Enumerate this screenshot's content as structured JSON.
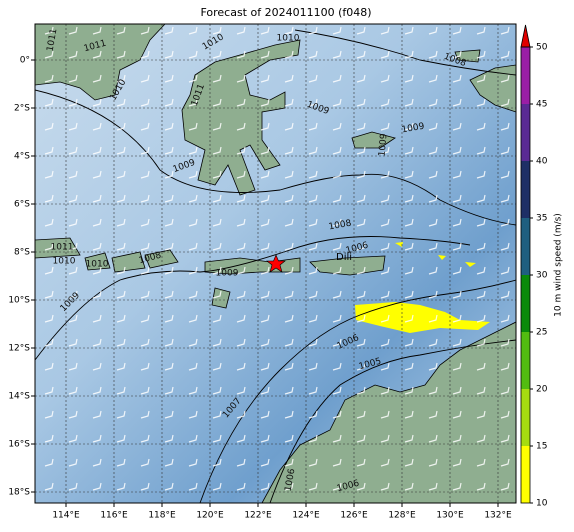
{
  "title": "Forecast of 2024011100 (f048)",
  "lon_ticks": [
    {
      "value": 114,
      "label": "114°E"
    },
    {
      "value": 116,
      "label": "116°E"
    },
    {
      "value": 118,
      "label": "118°E"
    },
    {
      "value": 120,
      "label": "120°E"
    },
    {
      "value": 122,
      "label": "122°E"
    },
    {
      "value": 124,
      "label": "124°E"
    },
    {
      "value": 126,
      "label": "126°E"
    },
    {
      "value": 128,
      "label": "128°E"
    },
    {
      "value": 130,
      "label": "130°E"
    },
    {
      "value": 132,
      "label": "132°E"
    }
  ],
  "lat_ticks": [
    {
      "value": 0,
      "label": "0°"
    },
    {
      "value": -2,
      "label": "2°S"
    },
    {
      "value": -4,
      "label": "4°S"
    },
    {
      "value": -6,
      "label": "6°S"
    },
    {
      "value": -8,
      "label": "8°S"
    },
    {
      "value": -10,
      "label": "10°S"
    },
    {
      "value": -12,
      "label": "12°S"
    },
    {
      "value": -14,
      "label": "14°S"
    },
    {
      "value": -16,
      "label": "16°S"
    },
    {
      "value": -18,
      "label": "18°S"
    }
  ],
  "colorbar": {
    "label": "10 m wind speed (m/s)",
    "lim": [
      10,
      50
    ],
    "ticks": [
      10,
      15,
      20,
      25,
      30,
      35,
      40,
      45,
      50
    ],
    "colors": [
      "#ffff00",
      "#a6dc10",
      "#52bc10",
      "#0a8a0a",
      "#1f5f80",
      "#1e2f66",
      "#5a2a94",
      "#9a1ea6"
    ],
    "extend_color": "#e00000"
  },
  "place_label": "Dili",
  "isobar_labels": [
    "1011",
    "1011",
    "1010",
    "1011",
    "1010",
    "1010",
    "1008",
    "1009",
    "1009",
    "1009",
    "1009",
    "1008",
    "1006",
    "1011",
    "1010",
    "1010",
    "1008",
    "1009",
    "1009",
    "1006",
    "1005",
    "1007",
    "1006",
    "1006"
  ]
}
